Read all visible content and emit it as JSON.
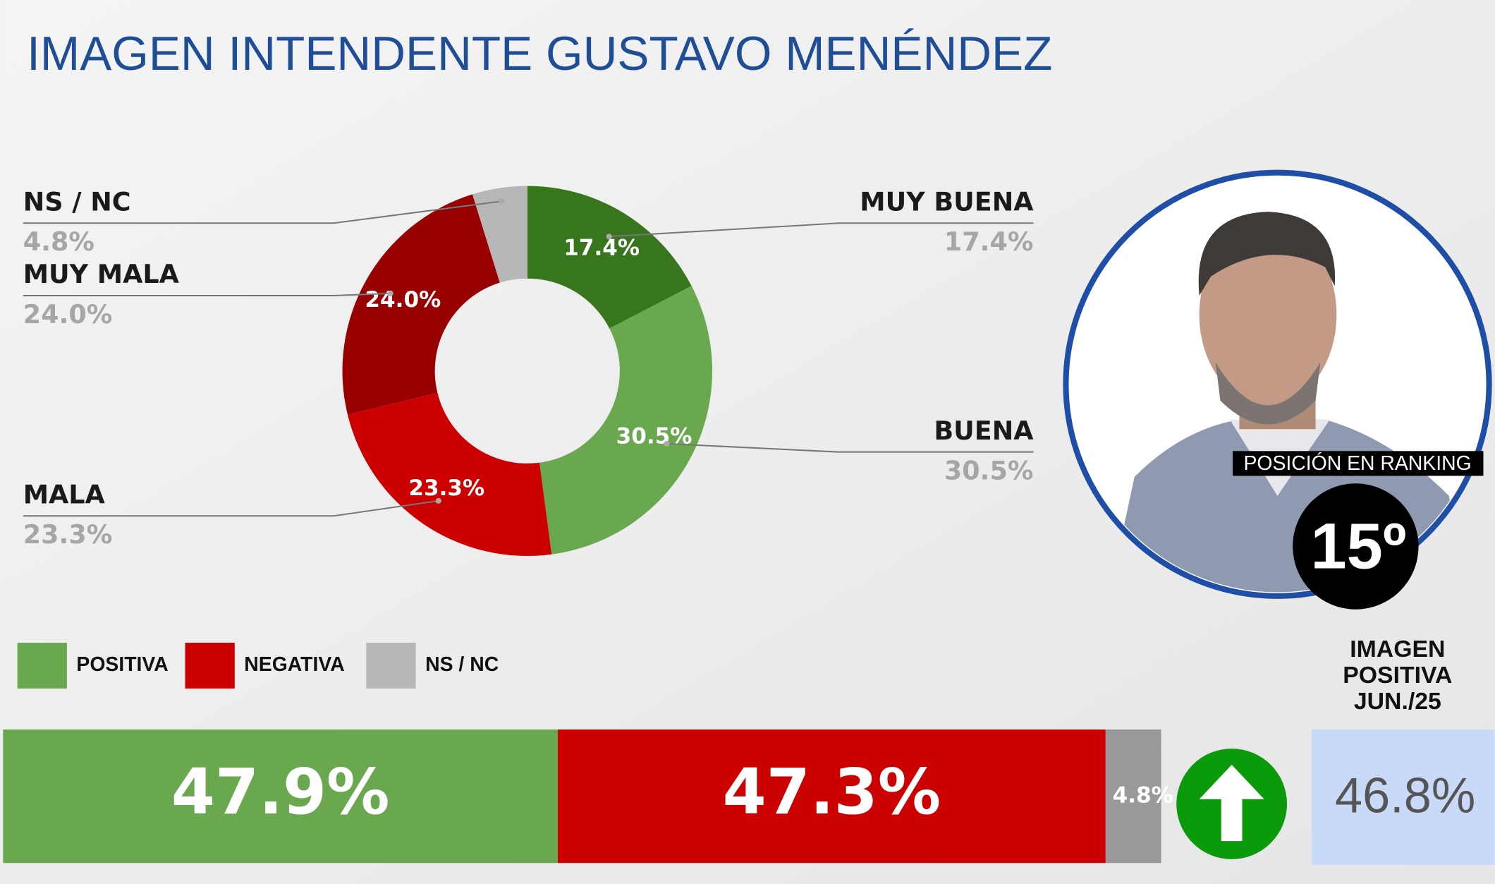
{
  "chart_data": [
    {
      "type": "pie",
      "donut": true,
      "title": "IMAGEN INTENDENTE  GUSTAVO MENÉNDEZ",
      "categories": [
        "MUY BUENA",
        "BUENA",
        "MALA",
        "MUY MALA",
        "NS / NC"
      ],
      "values": [
        17.4,
        30.5,
        23.3,
        24.0,
        4.8
      ],
      "value_labels": [
        "17.4%",
        "30.5%",
        "23.3%",
        "24.0%",
        "4.8%"
      ],
      "colors": [
        "#38761d",
        "#6aa84f",
        "#cc0000",
        "#990000",
        "#b7b7b7"
      ]
    },
    {
      "type": "bar",
      "orientation": "horizontal",
      "stacked": true,
      "series": [
        {
          "name": "POSITIVA",
          "color": "#6aa84f",
          "values": [
            47.9
          ],
          "value_labels": [
            "47.9%"
          ]
        },
        {
          "name": "NEGATIVA",
          "color": "#cc0000",
          "values": [
            47.3
          ],
          "value_labels": [
            "47.3%"
          ]
        },
        {
          "name": "NS / NC",
          "color": "#999999",
          "values": [
            4.8
          ],
          "value_labels": [
            "4.8%"
          ]
        }
      ]
    }
  ],
  "ranking": {
    "label": "POSICIÓN EN RANKING",
    "position": "15º"
  },
  "previous": {
    "label_lines": [
      "IMAGEN",
      "POSITIVA",
      "JUN./25"
    ],
    "value": "46.8%"
  }
}
